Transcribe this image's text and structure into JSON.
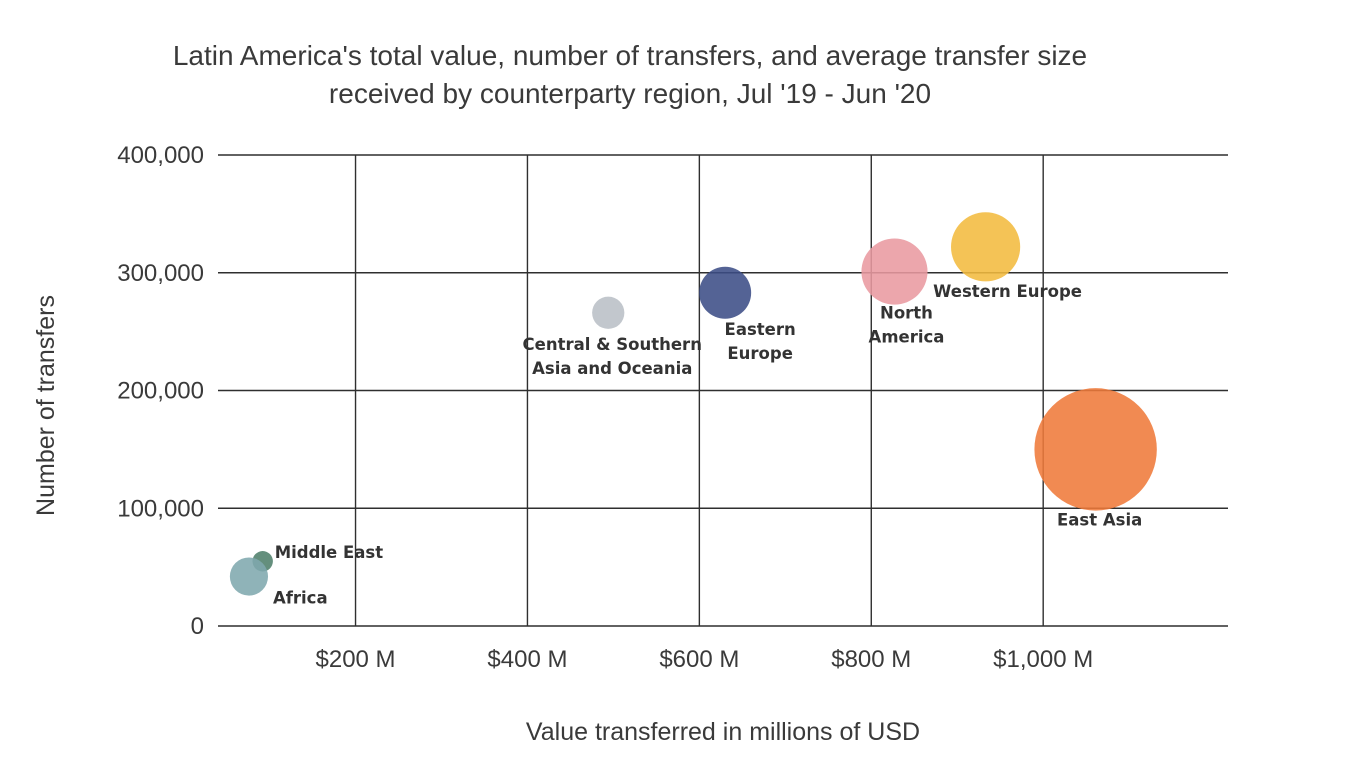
{
  "chart_data": {
    "type": "scatter",
    "bubble": true,
    "title_lines": [
      "Latin America's total value, number of transfers, and average transfer size",
      "received by counterparty region, Jul '19 - Jun '20"
    ],
    "xlabel": "Value transferred in millions of USD",
    "ylabel": "Number of transfers",
    "xlim": [
      40,
      1215
    ],
    "ylim": [
      0,
      400000
    ],
    "x_ticks": [
      {
        "value": 200,
        "label": "$200 M"
      },
      {
        "value": 400,
        "label": "$400 M"
      },
      {
        "value": 600,
        "label": "$600 M"
      },
      {
        "value": 800,
        "label": "$800 M"
      },
      {
        "value": 1000,
        "label": "$1,000 M"
      }
    ],
    "y_ticks": [
      {
        "value": 0,
        "label": "0"
      },
      {
        "value": 100000,
        "label": "100,000"
      },
      {
        "value": 200000,
        "label": "200,000"
      },
      {
        "value": 300000,
        "label": "300,000"
      },
      {
        "value": 400000,
        "label": "400,000"
      }
    ],
    "grid": true,
    "series": [
      {
        "name": "Middle East",
        "label_lines": [
          "Middle East"
        ],
        "x": 92,
        "y": 55000,
        "size": 1,
        "color": "#4e7f6b"
      },
      {
        "name": "Africa",
        "label_lines": [
          "Africa"
        ],
        "x": 76,
        "y": 42000,
        "size": 3.5,
        "color": "#7fa8ae"
      },
      {
        "name": "Central & Southern Asia and Oceania",
        "label_lines": [
          "Central & Southern",
          "Asia and Oceania"
        ],
        "x": 494,
        "y": 266000,
        "size": 2.5,
        "color": "#b9bfc6"
      },
      {
        "name": "Eastern Europe",
        "label_lines": [
          "Eastern",
          "Europe"
        ],
        "x": 630,
        "y": 283000,
        "size": 6.5,
        "color": "#3c4d86"
      },
      {
        "name": "North America",
        "label_lines": [
          "North",
          "America"
        ],
        "x": 827,
        "y": 301000,
        "size": 10.5,
        "color": "#e99aa0"
      },
      {
        "name": "Western Europe",
        "label_lines": [
          "Western Europe"
        ],
        "x": 933,
        "y": 322000,
        "size": 11.5,
        "color": "#f3bb3f"
      },
      {
        "name": "East Asia",
        "label_lines": [
          "East Asia"
        ],
        "x": 1061,
        "y": 150000,
        "size": 36,
        "color": "#ef7a3a"
      }
    ]
  }
}
